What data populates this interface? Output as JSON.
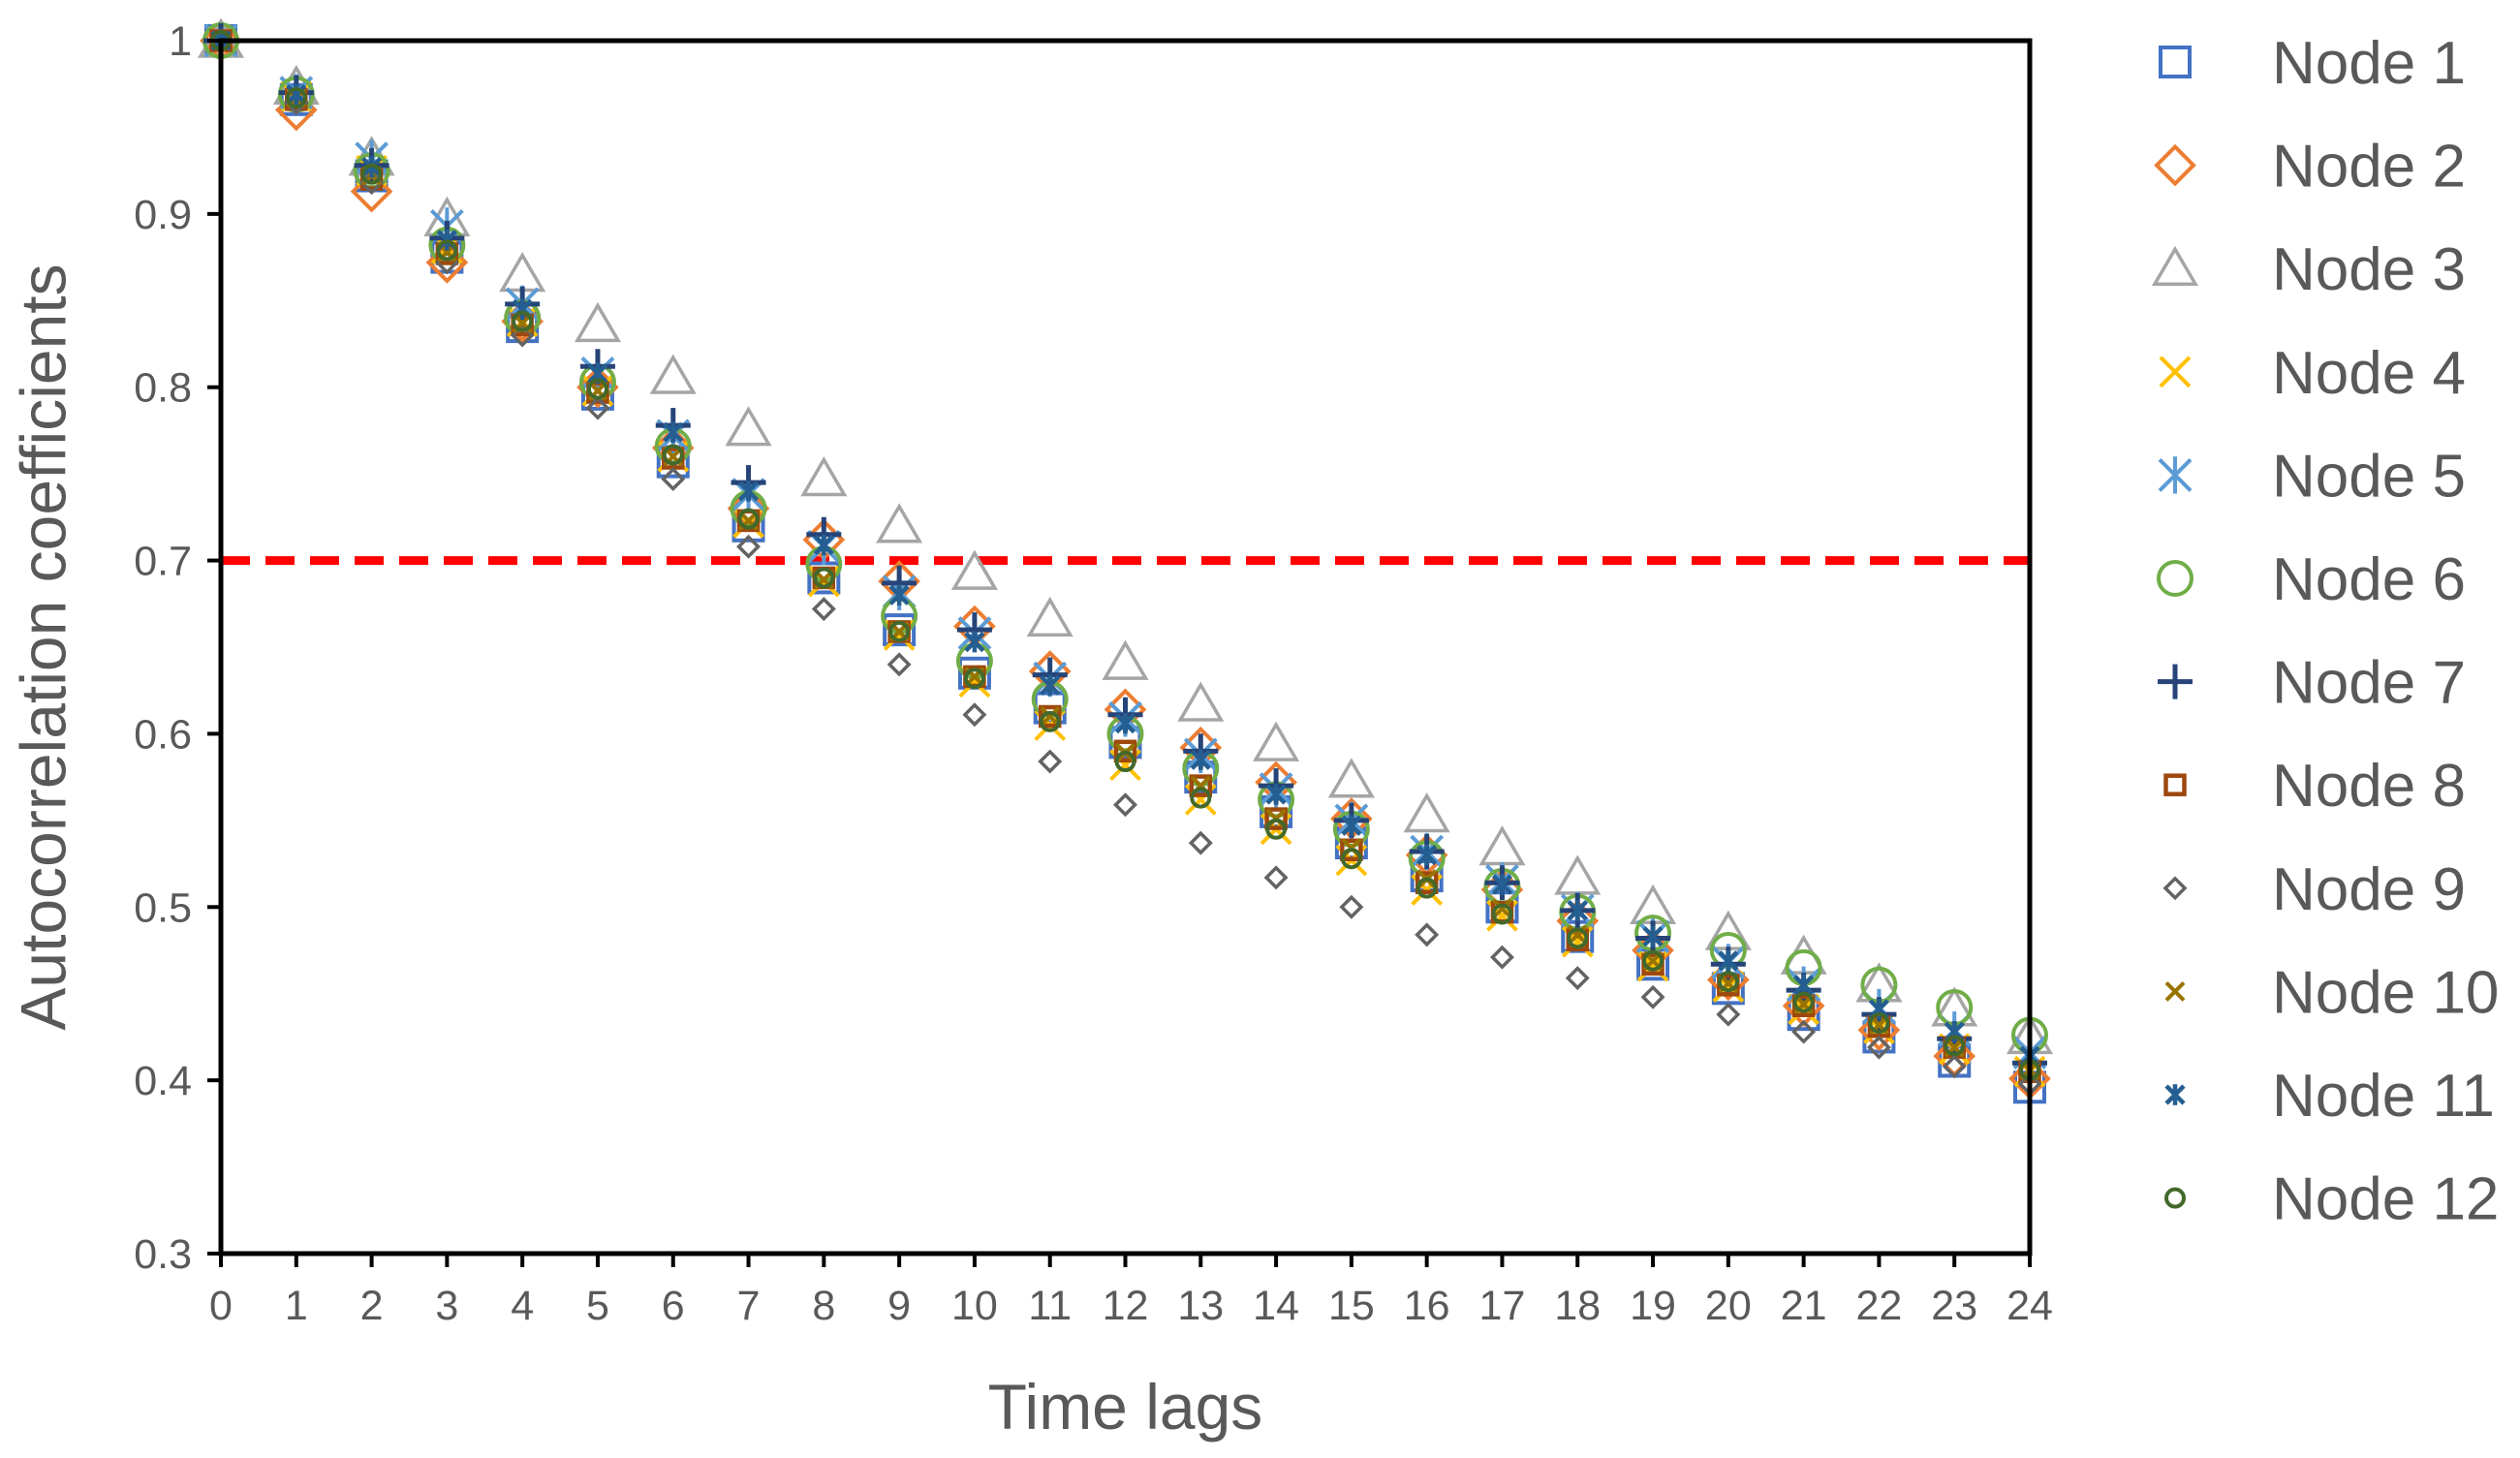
{
  "chart_data": {
    "type": "scatter",
    "title": "",
    "xlabel": "Time lags",
    "ylabel": "Autocorrelation coefficients",
    "xlim": [
      0,
      24
    ],
    "ylim": [
      0.3,
      1.0
    ],
    "x_ticks": [
      "0",
      "1",
      "2",
      "3",
      "4",
      "5",
      "6",
      "7",
      "8",
      "9",
      "10",
      "11",
      "12",
      "13",
      "14",
      "15",
      "16",
      "17",
      "18",
      "19",
      "20",
      "21",
      "22",
      "23",
      "24"
    ],
    "y_ticks": [
      "0.3",
      "0.4",
      "0.5",
      "0.6",
      "0.7",
      "0.8",
      "0.9",
      "1"
    ],
    "grid": false,
    "legend_position": "right",
    "x": [
      0,
      1,
      2,
      3,
      4,
      5,
      6,
      7,
      8,
      9,
      10,
      11,
      12,
      13,
      14,
      15,
      16,
      17,
      18,
      19,
      20,
      21,
      22,
      23,
      24
    ],
    "reference_line": {
      "y": 0.7,
      "style": "dashed",
      "color": "#ff0000"
    },
    "series": [
      {
        "name": "Node 1",
        "marker": "square",
        "color": "#4472c4",
        "values": [
          1.0,
          0.966,
          0.922,
          0.875,
          0.835,
          0.796,
          0.757,
          0.72,
          0.69,
          0.66,
          0.635,
          0.615,
          0.595,
          0.575,
          0.555,
          0.537,
          0.518,
          0.5,
          0.483,
          0.467,
          0.453,
          0.438,
          0.425,
          0.411,
          0.396
        ]
      },
      {
        "name": "Node 2",
        "marker": "diamond",
        "color": "#ed7d31",
        "values": [
          1.0,
          0.96,
          0.913,
          0.872,
          0.838,
          0.8,
          0.765,
          0.73,
          0.712,
          0.688,
          0.662,
          0.636,
          0.614,
          0.592,
          0.572,
          0.551,
          0.53,
          0.51,
          0.492,
          0.475,
          0.458,
          0.443,
          0.429,
          0.414,
          0.401
        ]
      },
      {
        "name": "Node 3",
        "marker": "triangle",
        "color": "#a5a5a5",
        "values": [
          1.0,
          0.973,
          0.932,
          0.897,
          0.865,
          0.836,
          0.806,
          0.776,
          0.747,
          0.72,
          0.693,
          0.666,
          0.641,
          0.617,
          0.594,
          0.573,
          0.553,
          0.534,
          0.517,
          0.5,
          0.485,
          0.471,
          0.455,
          0.441,
          0.425
        ]
      },
      {
        "name": "Node 4",
        "marker": "x",
        "color": "#ffc000",
        "values": [
          1.0,
          0.968,
          0.925,
          0.88,
          0.838,
          0.798,
          0.76,
          0.722,
          0.688,
          0.657,
          0.63,
          0.605,
          0.582,
          0.562,
          0.545,
          0.527,
          0.51,
          0.495,
          0.48,
          0.466,
          0.454,
          0.441,
          0.43,
          0.418,
          0.405
        ]
      },
      {
        "name": "Node 5",
        "marker": "asterisk",
        "color": "#5b9bd5",
        "values": [
          1.0,
          0.97,
          0.932,
          0.893,
          0.848,
          0.808,
          0.772,
          0.738,
          0.708,
          0.682,
          0.658,
          0.632,
          0.609,
          0.588,
          0.568,
          0.55,
          0.532,
          0.515,
          0.498,
          0.483,
          0.468,
          0.455,
          0.442,
          0.429,
          0.416
        ]
      },
      {
        "name": "Node 6",
        "marker": "circle",
        "color": "#70ad47",
        "values": [
          1.0,
          0.969,
          0.925,
          0.882,
          0.84,
          0.803,
          0.766,
          0.73,
          0.698,
          0.668,
          0.642,
          0.62,
          0.6,
          0.58,
          0.562,
          0.545,
          0.528,
          0.512,
          0.497,
          0.485,
          0.475,
          0.465,
          0.455,
          0.442,
          0.426
        ]
      },
      {
        "name": "Node 7",
        "marker": "plus",
        "color": "#264478",
        "values": [
          1.0,
          0.97,
          0.928,
          0.886,
          0.848,
          0.812,
          0.778,
          0.745,
          0.715,
          0.687,
          0.66,
          0.634,
          0.611,
          0.59,
          0.57,
          0.55,
          0.532,
          0.514,
          0.498,
          0.482,
          0.467,
          0.452,
          0.438,
          0.424,
          0.41
        ]
      },
      {
        "name": "Node 8",
        "marker": "square-small",
        "color": "#9e480e",
        "values": [
          1.0,
          0.966,
          0.92,
          0.877,
          0.836,
          0.797,
          0.759,
          0.723,
          0.69,
          0.659,
          0.633,
          0.61,
          0.59,
          0.57,
          0.551,
          0.533,
          0.514,
          0.497,
          0.481,
          0.467,
          0.455,
          0.443,
          0.431,
          0.419,
          0.405
        ]
      },
      {
        "name": "Node 9",
        "marker": "diamond-small",
        "color": "#636363",
        "values": [
          1.0,
          0.964,
          0.918,
          0.872,
          0.83,
          0.788,
          0.747,
          0.708,
          0.672,
          0.64,
          0.611,
          0.584,
          0.559,
          0.537,
          0.517,
          0.5,
          0.484,
          0.471,
          0.459,
          0.448,
          0.438,
          0.428,
          0.419,
          0.408,
          0.398
        ]
      },
      {
        "name": "Node 10",
        "marker": "x-small",
        "color": "#997300",
        "values": [
          1.0,
          0.967,
          0.922,
          0.878,
          0.837,
          0.798,
          0.76,
          0.723,
          0.689,
          0.659,
          0.633,
          0.61,
          0.589,
          0.57,
          0.551,
          0.534,
          0.516,
          0.499,
          0.484,
          0.469,
          0.456,
          0.444,
          0.432,
          0.419,
          0.406
        ]
      },
      {
        "name": "Node 11",
        "marker": "asterisk-small",
        "color": "#255e91",
        "values": [
          1.0,
          0.969,
          0.927,
          0.885,
          0.845,
          0.808,
          0.774,
          0.74,
          0.709,
          0.68,
          0.653,
          0.628,
          0.606,
          0.585,
          0.565,
          0.547,
          0.53,
          0.513,
          0.498,
          0.483,
          0.469,
          0.455,
          0.441,
          0.428,
          0.414
        ]
      },
      {
        "name": "Node 12",
        "marker": "circle-small",
        "color": "#43682b",
        "values": [
          1.0,
          0.967,
          0.923,
          0.879,
          0.838,
          0.799,
          0.761,
          0.724,
          0.69,
          0.659,
          0.632,
          0.607,
          0.584,
          0.563,
          0.545,
          0.528,
          0.511,
          0.496,
          0.482,
          0.469,
          0.457,
          0.445,
          0.433,
          0.42,
          0.406
        ]
      }
    ]
  }
}
